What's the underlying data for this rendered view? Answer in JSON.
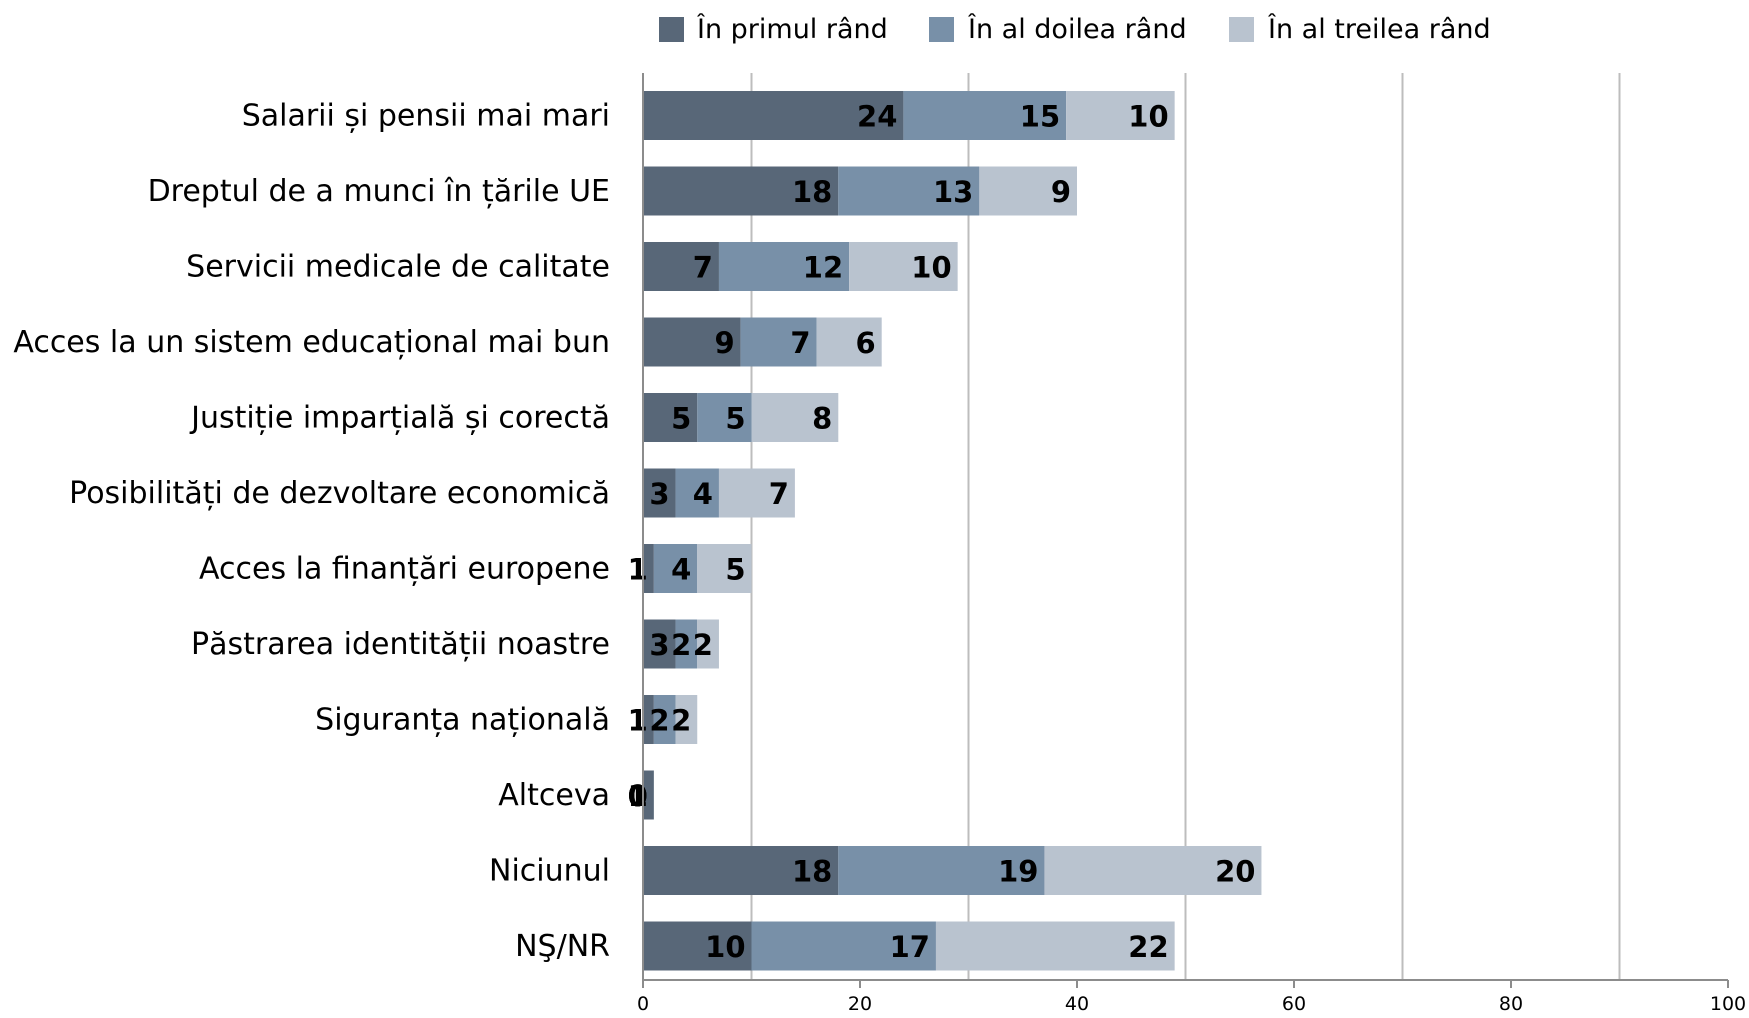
{
  "chart_data": {
    "type": "bar",
    "orientation": "horizontal",
    "stacked": true,
    "categories": [
      "Salarii și pensii mai mari",
      "Dreptul de a munci în țările UE",
      "Servicii medicale de calitate",
      "Acces la un sistem educațional mai bun",
      "Justiție imparțială și corectă",
      "Posibilități de dezvoltare economică",
      "Acces la finanțări europene",
      "Păstrarea identității noastre",
      "Siguranța națională",
      "Altceva",
      "Niciunul",
      "NŞ/NR"
    ],
    "series": [
      {
        "name": "În primul rând",
        "color": "#586778",
        "values": [
          24,
          18,
          7,
          9,
          5,
          3,
          1,
          3,
          1,
          1,
          18,
          10
        ]
      },
      {
        "name": "În al doilea rând",
        "color": "#7890a8",
        "values": [
          15,
          13,
          12,
          7,
          5,
          4,
          4,
          2,
          2,
          0,
          19,
          17
        ]
      },
      {
        "name": "În al treilea rând",
        "color": "#b9c3cf",
        "values": [
          10,
          9,
          10,
          6,
          8,
          7,
          5,
          2,
          2,
          0,
          20,
          22
        ]
      }
    ],
    "xlim": [
      0,
      100
    ],
    "xticks": [
      0,
      20,
      40,
      60,
      80,
      100
    ],
    "grid": "vertical",
    "legend_position": "top"
  }
}
